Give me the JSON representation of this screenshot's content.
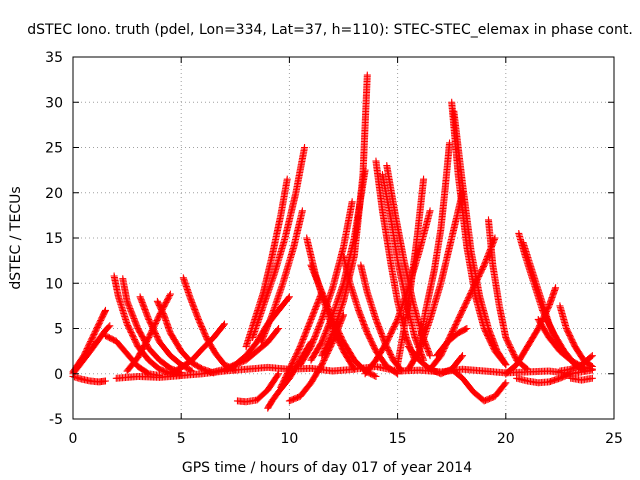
{
  "chart_data": {
    "type": "scatter",
    "title": "dSTEC Iono. truth (pdel, Lon=334, Lat=37, h=110): STEC-STEC_elemax in phase cont.",
    "xlabel": "GPS time / hours of day 017 of year 2014",
    "ylabel": "dSTEC  / TECUs",
    "xlim": [
      0,
      25
    ],
    "ylim": [
      -5,
      35
    ],
    "xticks": [
      0,
      5,
      10,
      15,
      20,
      25
    ],
    "yticks": [
      -5,
      0,
      5,
      10,
      15,
      20,
      25,
      30,
      35
    ],
    "grid": true,
    "marker": "plus",
    "marker_color": "#ff0000",
    "series": [
      {
        "x": [
          0.0,
          0.5,
          1.0,
          1.4,
          1.5
        ],
        "y": [
          0.2,
          2.0,
          4.5,
          6.5,
          7.0
        ]
      },
      {
        "x": [
          0.0,
          0.4,
          0.8,
          1.2,
          1.5
        ],
        "y": [
          -0.3,
          -0.6,
          -0.8,
          -0.9,
          -0.8
        ]
      },
      {
        "x": [
          0.0,
          0.8,
          1.5,
          1.7
        ],
        "y": [
          0.0,
          2.5,
          4.8,
          5.3
        ]
      },
      {
        "x": [
          1.5,
          2.0,
          2.5,
          3.0,
          3.5,
          4.0
        ],
        "y": [
          4.2,
          3.6,
          2.2,
          0.8,
          0.0,
          -0.2
        ]
      },
      {
        "x": [
          1.9,
          2.1,
          2.5,
          3.0,
          3.5,
          4.0,
          4.5,
          5.0
        ],
        "y": [
          10.8,
          8.5,
          5.5,
          3.0,
          1.5,
          0.5,
          0.0,
          -0.2
        ]
      },
      {
        "x": [
          2.3,
          2.5,
          3.0,
          3.5,
          4.0,
          4.5,
          5.0
        ],
        "y": [
          10.5,
          8.0,
          5.0,
          2.8,
          1.5,
          0.6,
          0.1
        ]
      },
      {
        "x": [
          3.1,
          3.5,
          4.0,
          4.5,
          5.0,
          5.5
        ],
        "y": [
          8.5,
          6.0,
          3.5,
          2.0,
          1.0,
          0.3
        ]
      },
      {
        "x": [
          3.9,
          4.2,
          4.5,
          5.0,
          5.5,
          6.0,
          6.5
        ],
        "y": [
          8.0,
          6.5,
          4.5,
          2.5,
          1.2,
          0.5,
          0.1
        ]
      },
      {
        "x": [
          5.1,
          5.4,
          5.8,
          6.2,
          6.6,
          7.0,
          7.5
        ],
        "y": [
          10.6,
          8.5,
          6.0,
          3.8,
          2.2,
          1.0,
          0.4
        ]
      },
      {
        "x": [
          2.5,
          3.0,
          3.5,
          4.0,
          4.5
        ],
        "y": [
          0.3,
          1.8,
          4.0,
          6.5,
          8.8
        ]
      },
      {
        "x": [
          4.5,
          5.0,
          5.5,
          6.0,
          6.5,
          7.0
        ],
        "y": [
          0.0,
          0.7,
          1.5,
          2.8,
          4.0,
          5.5
        ]
      },
      {
        "x": [
          6.5,
          7.0,
          7.5,
          8.0,
          8.5,
          9.0,
          9.5
        ],
        "y": [
          0.2,
          0.5,
          1.0,
          1.5,
          2.5,
          3.5,
          5.0
        ]
      },
      {
        "x": [
          7.0,
          7.5,
          8.0,
          8.5,
          9.0,
          9.5,
          10.0
        ],
        "y": [
          0.3,
          1.0,
          2.0,
          3.5,
          5.5,
          7.0,
          8.5
        ]
      },
      {
        "x": [
          7.6,
          8.0,
          8.5,
          9.0,
          9.5
        ],
        "y": [
          -3.0,
          -3.1,
          -2.9,
          -1.8,
          0.0
        ]
      },
      {
        "x": [
          9.0,
          9.2,
          9.5,
          10.0,
          10.5,
          11.0
        ],
        "y": [
          -3.8,
          -3.0,
          -2.0,
          -0.5,
          1.5,
          3.5
        ]
      },
      {
        "x": [
          8.0,
          8.4,
          8.8,
          9.2,
          9.6,
          9.9
        ],
        "y": [
          3.0,
          6.0,
          9.0,
          13.0,
          17.5,
          21.5
        ]
      },
      {
        "x": [
          8.3,
          8.8,
          9.3,
          9.8,
          10.3,
          10.7
        ],
        "y": [
          4.0,
          7.5,
          11.0,
          15.0,
          20.0,
          25.0
        ]
      },
      {
        "x": [
          8.7,
          9.2,
          9.7,
          10.2,
          10.6
        ],
        "y": [
          3.5,
          6.5,
          10.0,
          14.0,
          18.0
        ]
      },
      {
        "x": [
          9.6,
          10.0,
          10.5,
          11.0,
          11.5
        ],
        "y": [
          -1.5,
          0.5,
          3.0,
          6.0,
          9.0
        ]
      },
      {
        "x": [
          10.8,
          11.2,
          11.6,
          12.0,
          12.5,
          13.0
        ],
        "y": [
          15.0,
          11.0,
          8.0,
          5.0,
          2.5,
          0.5
        ]
      },
      {
        "x": [
          11.0,
          11.5,
          12.0,
          12.5,
          13.0,
          13.5,
          14.0
        ],
        "y": [
          12.0,
          9.0,
          6.0,
          3.5,
          1.5,
          0.3,
          -0.3
        ]
      },
      {
        "x": [
          10.0,
          10.5,
          11.0,
          11.5,
          12.0,
          12.5
        ],
        "y": [
          -3.0,
          -2.5,
          -1.0,
          1.0,
          3.5,
          6.5
        ]
      },
      {
        "x": [
          10.5,
          11.0,
          11.5,
          12.0,
          12.5,
          12.9
        ],
        "y": [
          1.0,
          3.0,
          6.0,
          9.5,
          14.0,
          19.0
        ]
      },
      {
        "x": [
          11.0,
          11.5,
          12.0,
          12.5,
          13.0,
          13.5
        ],
        "y": [
          1.5,
          3.5,
          6.5,
          10.0,
          15.0,
          22.5
        ]
      },
      {
        "x": [
          11.5,
          12.0,
          12.5,
          13.0,
          13.4,
          13.6
        ],
        "y": [
          2.0,
          4.5,
          8.0,
          13.0,
          22.0,
          33.0
        ]
      },
      {
        "x": [
          12.5,
          12.8,
          13.2,
          13.6,
          14.0,
          14.5,
          15.0
        ],
        "y": [
          13.0,
          10.0,
          7.0,
          4.5,
          2.5,
          0.8,
          0.0
        ]
      },
      {
        "x": [
          13.3,
          13.6,
          14.0,
          14.4,
          14.8,
          15.2
        ],
        "y": [
          12.0,
          9.0,
          6.0,
          3.5,
          1.5,
          0.3
        ]
      },
      {
        "x": [
          14.0,
          14.3,
          14.7,
          15.0,
          15.4,
          15.8
        ],
        "y": [
          23.5,
          18.0,
          12.0,
          8.0,
          4.0,
          1.5
        ]
      },
      {
        "x": [
          14.3,
          14.7,
          15.0,
          15.4,
          15.8,
          16.2
        ],
        "y": [
          22.0,
          17.0,
          12.5,
          8.0,
          4.0,
          1.5
        ]
      },
      {
        "x": [
          14.5,
          14.9,
          15.3,
          15.7,
          16.1,
          16.5
        ],
        "y": [
          23.0,
          17.5,
          12.5,
          8.0,
          4.5,
          2.0
        ]
      },
      {
        "x": [
          13.5,
          14.0,
          14.5,
          15.0,
          15.5,
          16.0,
          16.5
        ],
        "y": [
          0.0,
          1.5,
          3.5,
          6.0,
          9.5,
          13.5,
          18.0
        ]
      },
      {
        "x": [
          15.0,
          15.3,
          15.6,
          15.9,
          16.2
        ],
        "y": [
          1.0,
          5.0,
          9.5,
          15.0,
          21.5
        ]
      },
      {
        "x": [
          15.5,
          16.0,
          16.5,
          17.0,
          17.5,
          18.0
        ],
        "y": [
          0.5,
          2.5,
          6.0,
          10.0,
          15.0,
          20.0
        ]
      },
      {
        "x": [
          16.0,
          16.3,
          16.7,
          17.0,
          17.2,
          17.4
        ],
        "y": [
          3.0,
          7.0,
          11.5,
          16.0,
          20.5,
          25.5
        ]
      },
      {
        "x": [
          15.5,
          16.0,
          16.5,
          17.0,
          17.5,
          18.0
        ],
        "y": [
          3.0,
          1.5,
          0.5,
          0.0,
          0.5,
          2.0
        ]
      },
      {
        "x": [
          17.5,
          17.8,
          18.2,
          18.6,
          19.0,
          19.5,
          20.0
        ],
        "y": [
          30.0,
          22.0,
          14.0,
          8.5,
          5.0,
          2.5,
          1.0
        ]
      },
      {
        "x": [
          17.6,
          18.0,
          18.4,
          18.8,
          19.2,
          19.6,
          20.0
        ],
        "y": [
          29.0,
          21.0,
          13.5,
          8.5,
          5.0,
          2.5,
          1.0
        ]
      },
      {
        "x": [
          16.5,
          17.0,
          17.5,
          18.0,
          18.5,
          19.0,
          19.5
        ],
        "y": [
          0.5,
          2.0,
          4.5,
          7.0,
          9.5,
          12.0,
          15.0
        ]
      },
      {
        "x": [
          17.5,
          18.0,
          18.5,
          19.0,
          19.5,
          20.0
        ],
        "y": [
          0.5,
          -0.5,
          -2.0,
          -3.0,
          -2.5,
          -1.0
        ]
      },
      {
        "x": [
          16.8,
          17.3,
          17.8,
          18.2
        ],
        "y": [
          2.0,
          3.5,
          4.5,
          5.0
        ]
      },
      {
        "x": [
          19.2,
          19.4,
          19.7,
          20.0,
          20.5,
          21.0
        ],
        "y": [
          17.0,
          12.0,
          7.5,
          4.0,
          1.5,
          0.5
        ]
      },
      {
        "x": [
          20.6,
          20.9,
          21.3,
          21.7,
          22.2,
          22.7,
          23.2,
          23.7
        ],
        "y": [
          15.5,
          13.0,
          10.0,
          7.0,
          4.5,
          2.5,
          1.0,
          0.3
        ]
      },
      {
        "x": [
          20.8,
          21.2,
          21.6,
          22.0,
          22.5,
          23.0,
          23.5
        ],
        "y": [
          14.5,
          11.5,
          8.5,
          5.5,
          3.0,
          1.5,
          0.5
        ]
      },
      {
        "x": [
          21.5,
          22.0,
          22.5,
          23.0,
          23.5,
          24.0
        ],
        "y": [
          6.0,
          4.0,
          2.5,
          1.5,
          0.8,
          0.5
        ]
      },
      {
        "x": [
          22.5,
          22.8,
          23.2,
          23.6,
          24.0
        ],
        "y": [
          7.5,
          5.0,
          3.0,
          1.5,
          0.8
        ]
      },
      {
        "x": [
          20.0,
          20.5,
          21.0,
          21.5,
          22.0,
          22.3
        ],
        "y": [
          0.0,
          1.0,
          3.0,
          5.0,
          7.5,
          9.5
        ]
      },
      {
        "x": [
          20.5,
          21.0,
          21.5,
          22.0,
          22.5,
          23.0
        ],
        "y": [
          -0.5,
          -0.8,
          -1.0,
          -0.9,
          -0.5,
          0.0
        ]
      },
      {
        "x": [
          22.5,
          23.0,
          23.5,
          24.0
        ],
        "y": [
          0.3,
          0.5,
          1.0,
          2.0
        ]
      },
      {
        "x": [
          23.0,
          23.5,
          24.0
        ],
        "y": [
          -0.5,
          -0.7,
          -0.5
        ]
      },
      {
        "x": [
          2.0,
          3.0,
          4.0,
          5.0,
          6.0,
          7.0,
          8.0,
          9.0,
          10.0,
          11.0,
          12.0,
          13.0,
          14.0,
          15.0,
          16.0,
          17.0,
          18.0,
          19.0,
          20.0,
          21.0,
          22.0,
          23.0,
          24.0
        ],
        "y": [
          -0.5,
          -0.3,
          -0.4,
          -0.2,
          0.0,
          0.3,
          0.5,
          0.7,
          0.5,
          0.6,
          0.3,
          0.5,
          0.8,
          0.3,
          0.4,
          0.2,
          0.5,
          0.3,
          0.1,
          0.2,
          0.3,
          0.0,
          0.4
        ]
      }
    ]
  }
}
